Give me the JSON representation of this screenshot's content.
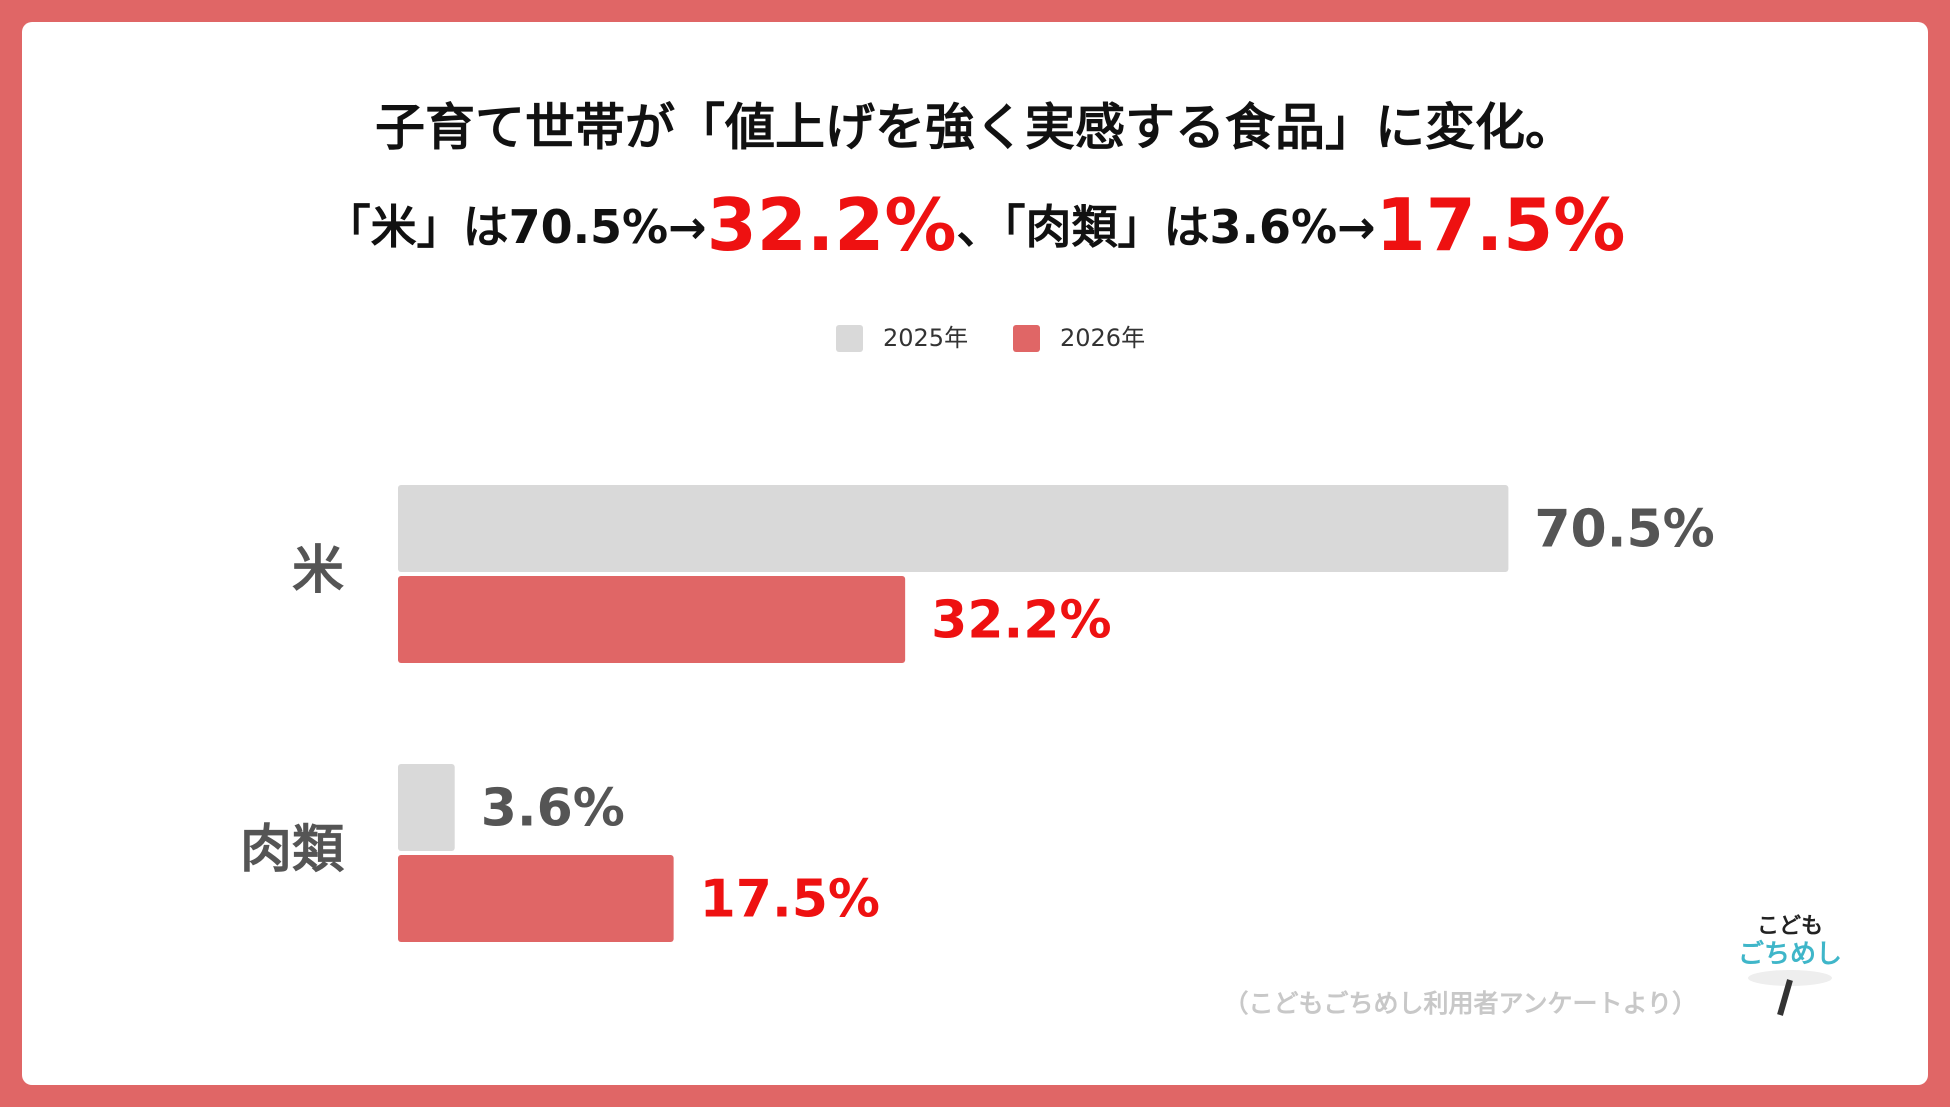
{
  "chart_data": {
    "type": "bar",
    "orientation": "horizontal",
    "title": "子育て世帯が「値上げを強く実感する食品」に変化。",
    "subtitle_parts": [
      {
        "text": "「米」は70.5%→"
      },
      {
        "text": "32.2%",
        "emphasis": true
      },
      {
        "text": "、「肉類」は3.6%→"
      },
      {
        "text": "17.5%",
        "emphasis": true
      }
    ],
    "categories": [
      "米",
      "肉類"
    ],
    "series": [
      {
        "name": "2025年",
        "color": "#d9d9d9",
        "label_color": "#555555",
        "values": [
          70.5,
          3.6
        ],
        "value_labels": [
          "70.5%",
          "3.6%"
        ]
      },
      {
        "name": "2026年",
        "color": "#e06666",
        "label_color": "#ee1111",
        "values": [
          32.2,
          17.5
        ],
        "value_labels": [
          "32.2%",
          "17.5%"
        ]
      }
    ],
    "xlim": [
      0,
      80
    ],
    "legend": "top",
    "source": "（こどもごちめし利用者アンケートより）",
    "logo": [
      "こども",
      "ごちめし"
    ]
  }
}
